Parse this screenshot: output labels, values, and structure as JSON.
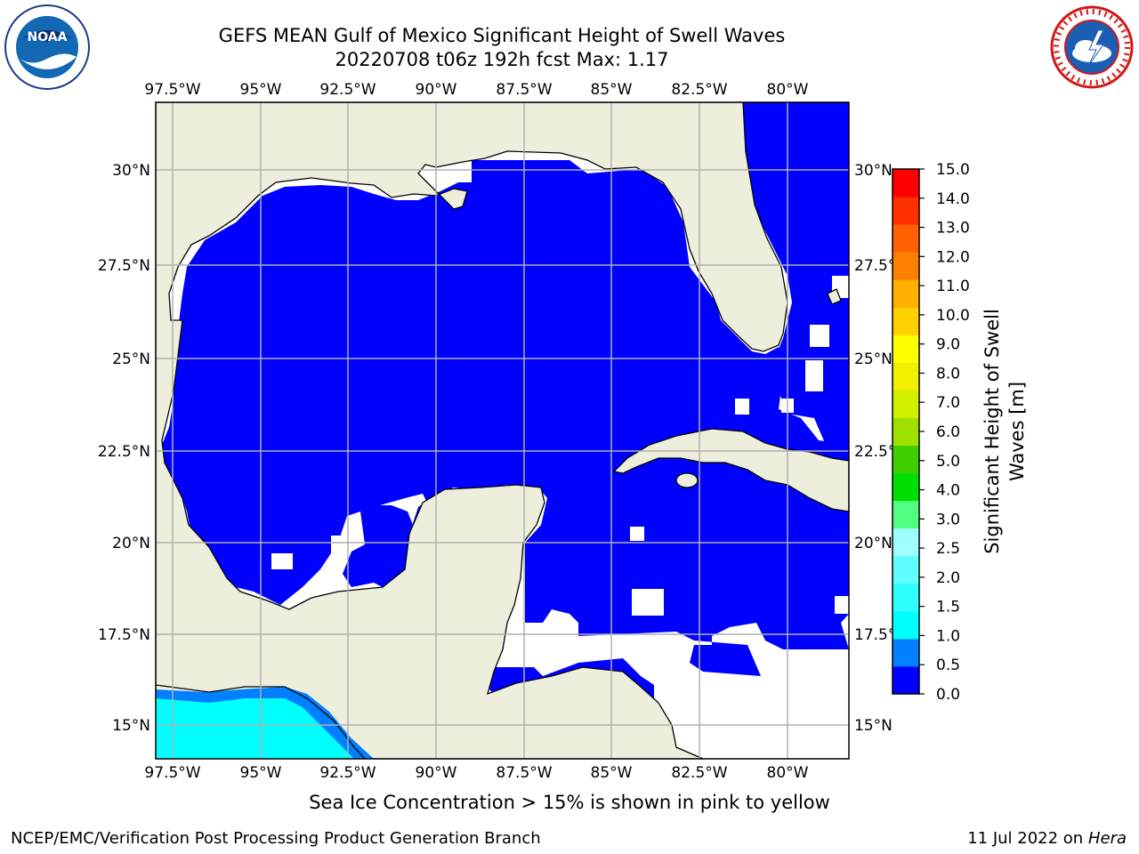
{
  "title": {
    "line1": "GEFS MEAN Gulf of Mexico Significant Height of Swell Waves",
    "line2": "20220708 t06z 192h fcst   Max: 1.17"
  },
  "logos": {
    "left_icon": "noaa-logo-icon",
    "left_text": "NOAA",
    "right_icon": "nws-logo-icon",
    "right_text": "NATIONAL WEATHER SERVICE"
  },
  "map": {
    "lon_ticks": [
      "97.5°W",
      "95°W",
      "92.5°W",
      "90°W",
      "87.5°W",
      "85°W",
      "82.5°W",
      "80°W"
    ],
    "lat_ticks": [
      "30°N",
      "27.5°N",
      "25°N",
      "22.5°N",
      "20°N",
      "17.5°N",
      "15°N"
    ],
    "colors": {
      "land": "#eeeedc",
      "water_low": "#0000ff",
      "grid": "#b0b0b0"
    }
  },
  "colorbar": {
    "label_line1": "Significant Height of Swell",
    "label_line2": "Waves [m]",
    "ticks": [
      "0.0",
      "0.5",
      "1.0",
      "1.5",
      "2.0",
      "2.5",
      "3.0",
      "4.0",
      "5.0",
      "6.0",
      "7.0",
      "8.0",
      "9.0",
      "10.0",
      "11.0",
      "12.0",
      "13.0",
      "14.0",
      "15.0"
    ],
    "colors": [
      "#0000ff",
      "#0080ff",
      "#00ffff",
      "#30ffff",
      "#60ffff",
      "#a0ffff",
      "#50ff80",
      "#00e000",
      "#40d000",
      "#a0e000",
      "#d0f000",
      "#f0f000",
      "#ffff00",
      "#ffd000",
      "#ffb000",
      "#ff8000",
      "#ff6000",
      "#ff3000",
      "#ff0000"
    ]
  },
  "note": "Sea Ice Concentration > 15% is shown in pink to yellow",
  "footer": {
    "left": "NCEP/EMC/Verification Post Processing Product Generation Branch",
    "right_prefix": "11 Jul 2022 on ",
    "right_italic": "Hera"
  }
}
